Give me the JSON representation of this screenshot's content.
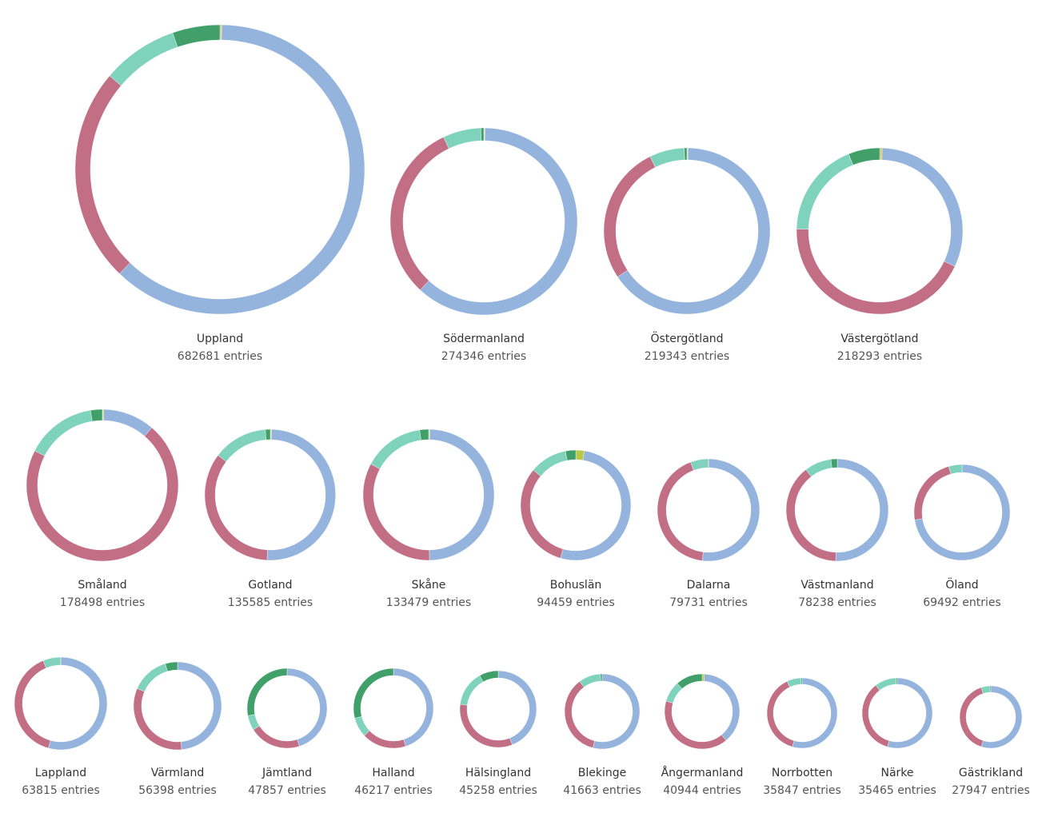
{
  "chart_data": {
    "type": "donut-grid",
    "categories": [
      "cat1",
      "cat2",
      "cat3",
      "cat4",
      "cat5",
      "cat6"
    ],
    "colors": {
      "cat1": "#94b4de",
      "cat2": "#c26f86",
      "cat3": "#7fd3bd",
      "cat4": "#41a069",
      "cat5": "#b6c94a",
      "cat6": "#d08a3c"
    },
    "entries_suffix": "entries",
    "items": [
      {
        "name": "Uppland",
        "entries": "682681",
        "entries_label": "682681 entries",
        "slices": {
          "cat1": 0.62,
          "cat2": 0.24,
          "cat3": 0.085,
          "cat4": 0.053,
          "cat5": 0.001,
          "cat6": 0.001
        }
      },
      {
        "name": "Södermanland",
        "entries": "274346",
        "entries_label": "274346 entries",
        "slices": {
          "cat1": 0.617,
          "cat2": 0.31,
          "cat3": 0.066,
          "cat4": 0.005,
          "cat5": 0.001,
          "cat6": 0.001
        }
      },
      {
        "name": "Östergötland",
        "entries": "219343",
        "entries_label": "219343 entries",
        "slices": {
          "cat1": 0.655,
          "cat2": 0.27,
          "cat3": 0.068,
          "cat4": 0.005,
          "cat5": 0.001,
          "cat6": 0.001
        }
      },
      {
        "name": "Västergötland",
        "entries": "218293",
        "entries_label": "218293 entries",
        "slices": {
          "cat1": 0.315,
          "cat2": 0.434,
          "cat3": 0.185,
          "cat4": 0.061,
          "cat5": 0.003,
          "cat6": 0.002
        }
      },
      {
        "name": "Småland",
        "entries": "178498",
        "entries_label": "178498 entries",
        "slices": {
          "cat1": 0.11,
          "cat2": 0.712,
          "cat3": 0.15,
          "cat4": 0.025,
          "cat5": 0.002,
          "cat6": 0.001
        }
      },
      {
        "name": "Gotland",
        "entries": "135585",
        "entries_label": "135585 entries",
        "slices": {
          "cat1": 0.505,
          "cat2": 0.345,
          "cat3": 0.135,
          "cat4": 0.012,
          "cat5": 0.002,
          "cat6": 0.001
        }
      },
      {
        "name": "Skåne",
        "entries": "133479",
        "entries_label": "133479 entries",
        "slices": {
          "cat1": 0.495,
          "cat2": 0.33,
          "cat3": 0.15,
          "cat4": 0.022,
          "cat5": 0.002,
          "cat6": 0.001
        }
      },
      {
        "name": "Bohuslän",
        "entries": "94459",
        "entries_label": "94459 entries",
        "slices": {
          "cat1": 0.52,
          "cat2": 0.315,
          "cat3": 0.11,
          "cat4": 0.03,
          "cat5": 0.025
        }
      },
      {
        "name": "Dalarna",
        "entries": "79731",
        "entries_label": "79731 entries",
        "slices": {
          "cat1": 0.52,
          "cat2": 0.423,
          "cat3": 0.055,
          "cat4": 0.002
        }
      },
      {
        "name": "Västmanland",
        "entries": "78238",
        "entries_label": "78238 entries",
        "slices": {
          "cat1": 0.505,
          "cat2": 0.39,
          "cat3": 0.085,
          "cat4": 0.02
        }
      },
      {
        "name": "Öland",
        "entries": "69492",
        "entries_label": "69492 entries",
        "slices": {
          "cat1": 0.725,
          "cat2": 0.23,
          "cat3": 0.045
        }
      },
      {
        "name": "Lappland",
        "entries": "63815",
        "entries_label": "63815 entries",
        "slices": {
          "cat1": 0.543,
          "cat2": 0.395,
          "cat3": 0.06,
          "cat4": 0.002
        }
      },
      {
        "name": "Värmland",
        "entries": "56398",
        "entries_label": "56398 entries",
        "slices": {
          "cat1": 0.485,
          "cat2": 0.33,
          "cat3": 0.14,
          "cat4": 0.045
        }
      },
      {
        "name": "Jämtland",
        "entries": "47857",
        "entries_label": "47857 entries",
        "slices": {
          "cat1": 0.45,
          "cat2": 0.21,
          "cat3": 0.06,
          "cat4": 0.28
        }
      },
      {
        "name": "Halland",
        "entries": "46217",
        "entries_label": "46217 entries",
        "slices": {
          "cat1": 0.45,
          "cat2": 0.18,
          "cat3": 0.08,
          "cat4": 0.29
        }
      },
      {
        "name": "Hälsingland",
        "entries": "45258",
        "entries_label": "45258 entries",
        "slices": {
          "cat1": 0.44,
          "cat2": 0.33,
          "cat3": 0.15,
          "cat4": 0.08
        }
      },
      {
        "name": "Blekinge",
        "entries": "41663",
        "entries_label": "41663 entries",
        "slices": {
          "cat1": 0.54,
          "cat2": 0.358,
          "cat3": 0.095,
          "cat4": 0.007
        }
      },
      {
        "name": "Ångermanland",
        "entries": "40944",
        "entries_label": "40944 entries",
        "slices": {
          "cat1": 0.38,
          "cat2": 0.405,
          "cat3": 0.09,
          "cat4": 0.115,
          "cat5": 0.01
        }
      },
      {
        "name": "Norrbotten",
        "entries": "35847",
        "entries_label": "35847 entries",
        "slices": {
          "cat1": 0.545,
          "cat2": 0.385,
          "cat3": 0.065,
          "cat4": 0.005
        }
      },
      {
        "name": "Närke",
        "entries": "35465",
        "entries_label": "35465 entries",
        "slices": {
          "cat1": 0.545,
          "cat2": 0.35,
          "cat3": 0.1,
          "cat4": 0.005
        }
      },
      {
        "name": "Gästrikland",
        "entries": "27947",
        "entries_label": "27947 entries",
        "slices": {
          "cat1": 0.55,
          "cat2": 0.4,
          "cat3": 0.045,
          "cat4": 0.005
        }
      }
    ]
  }
}
